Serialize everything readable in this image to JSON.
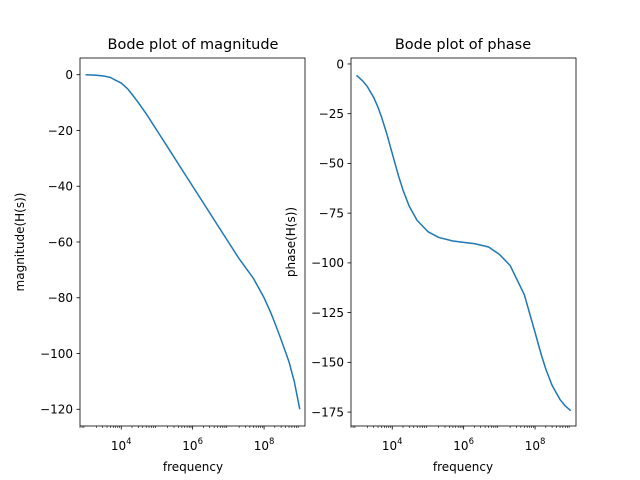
{
  "chart_data": [
    {
      "type": "line",
      "title": "Bode plot of magnitude",
      "xlabel": "frequency",
      "ylabel": "magnitude(H(s))",
      "xscale": "log",
      "xlim": [
        700,
        1400000000
      ],
      "ylim": [
        -126,
        6
      ],
      "xticks": [
        10000,
        1000000,
        100000000
      ],
      "xtick_labels": [
        {
          "base": "10",
          "exp": "4"
        },
        {
          "base": "10",
          "exp": "6"
        },
        {
          "base": "10",
          "exp": "8"
        }
      ],
      "yticks": [
        0,
        -20,
        -40,
        -60,
        -80,
        -100,
        -120
      ],
      "ytick_labels": [
        "0",
        "−20",
        "−40",
        "−60",
        "−80",
        "−100",
        "−120"
      ],
      "grid": false,
      "color": "#1f77b4",
      "series": [
        {
          "x": [
            1000,
            1500,
            2000,
            3000,
            4000,
            5000,
            7000,
            10000,
            15000,
            20000,
            30000,
            50000,
            100000,
            200000,
            500000,
            1000000,
            2000000,
            5000000,
            10000000,
            20000000,
            50000000,
            100000000,
            150000000,
            200000000,
            300000000,
            500000000,
            700000000,
            1000000000
          ],
          "y": [
            0,
            -0.1,
            -0.2,
            -0.4,
            -0.7,
            -1.0,
            -2.0,
            -3.0,
            -5.0,
            -7.0,
            -10.0,
            -14.0,
            -20.0,
            -26.0,
            -34.0,
            -40.0,
            -46.0,
            -54.0,
            -60.0,
            -66.0,
            -73.0,
            -80.0,
            -85.0,
            -89.0,
            -95.0,
            -103.0,
            -110.0,
            -120.0
          ]
        }
      ]
    },
    {
      "type": "line",
      "title": "Bode plot of phase",
      "xlabel": "frequency",
      "ylabel": "phase(H(s))",
      "xscale": "log",
      "xlim": [
        700,
        1400000000
      ],
      "ylim": [
        -182,
        3
      ],
      "xticks": [
        10000,
        1000000,
        100000000
      ],
      "xtick_labels": [
        {
          "base": "10",
          "exp": "4"
        },
        {
          "base": "10",
          "exp": "6"
        },
        {
          "base": "10",
          "exp": "8"
        }
      ],
      "yticks": [
        0,
        -25,
        -50,
        -75,
        -100,
        -125,
        -150,
        -175
      ],
      "ytick_labels": [
        "0",
        "−25",
        "−50",
        "−75",
        "−100",
        "−125",
        "−150",
        "−175"
      ],
      "grid": false,
      "color": "#1f77b4",
      "series": [
        {
          "x": [
            1000,
            1500,
            2000,
            3000,
            4000,
            5000,
            7000,
            10000,
            15000,
            20000,
            30000,
            50000,
            100000,
            200000,
            500000,
            1000000,
            2000000,
            5000000,
            10000000,
            20000000,
            50000000,
            100000000,
            150000000,
            200000000,
            300000000,
            500000000,
            700000000,
            1000000000
          ],
          "y": [
            -5.7,
            -8.6,
            -11.3,
            -16.7,
            -21.8,
            -26.6,
            -35.0,
            -45.0,
            -56.3,
            -63.4,
            -71.6,
            -78.7,
            -84.3,
            -87.2,
            -89.0,
            -89.7,
            -90.3,
            -92.0,
            -95.7,
            -101.3,
            -116.0,
            -135.0,
            -146.3,
            -153.4,
            -161.6,
            -168.7,
            -171.9,
            -174.3
          ]
        }
      ]
    }
  ]
}
